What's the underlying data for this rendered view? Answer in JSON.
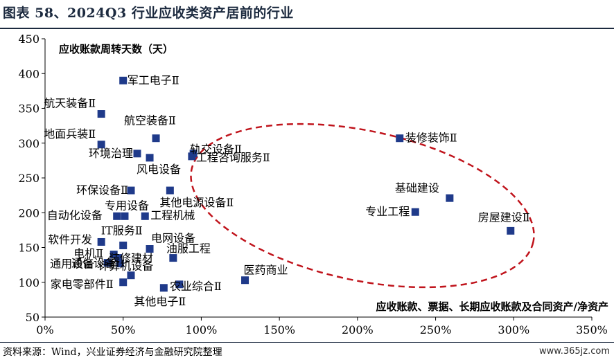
{
  "header": {
    "title": "图表 58、2024Q3 行业应收类资产居前的行业"
  },
  "footer": {
    "source": "资料来源：Wind，兴业证券经济与金融研究院整理",
    "watermark": "www.365jz.com"
  },
  "colors": {
    "marker": "#1f3a8a",
    "ellipse": "#c0141c",
    "axis": "#000000",
    "title": "#1c2a3f"
  },
  "chart_data": {
    "type": "scatter",
    "xlabel": "应收账款、票据、长期应收账款及合同资产/净资产",
    "ylabel": "应收账款周转天数（天）",
    "xlim": [
      0,
      3.5
    ],
    "ylim": [
      50,
      450
    ],
    "x_tick_values": [
      0,
      0.5,
      1.0,
      1.5,
      2.0,
      2.5,
      3.0,
      3.5
    ],
    "x_ticks": [
      "0%",
      "50%",
      "100%",
      "150%",
      "200%",
      "250%",
      "300%",
      "350%"
    ],
    "y_ticks": [
      "50",
      "100",
      "150",
      "200",
      "250",
      "300",
      "350",
      "400",
      "450"
    ],
    "y_tick_values": [
      50,
      100,
      150,
      200,
      250,
      300,
      350,
      400,
      450
    ],
    "highlight": "dashed ellipse around high-value industries",
    "points": [
      {
        "label": "军工电子Ⅱ",
        "x": 0.5,
        "y": 390
      },
      {
        "label": "航天装备Ⅱ",
        "x": 0.36,
        "y": 342
      },
      {
        "label": "航空装备Ⅱ",
        "x": 0.71,
        "y": 307
      },
      {
        "label": "地面兵装Ⅱ",
        "x": 0.36,
        "y": 298
      },
      {
        "label": "轨交设备Ⅱ",
        "x": 0.95,
        "y": 285
      },
      {
        "label": "环境治理",
        "x": 0.59,
        "y": 285
      },
      {
        "label": "工程咨询服务Ⅱ",
        "x": 0.94,
        "y": 281
      },
      {
        "label": "风电设备",
        "x": 0.67,
        "y": 279
      },
      {
        "label": "装修装饰Ⅱ",
        "x": 2.27,
        "y": 307
      },
      {
        "label": "环保设备Ⅱ",
        "x": 0.55,
        "y": 232
      },
      {
        "label": "其他电源设备Ⅱ",
        "x": 0.8,
        "y": 232
      },
      {
        "label": "基础建设",
        "x": 2.59,
        "y": 221
      },
      {
        "label": "专业工程",
        "x": 2.37,
        "y": 201
      },
      {
        "label": "自动化设备",
        "x": 0.46,
        "y": 195
      },
      {
        "label": "专用设备",
        "x": 0.51,
        "y": 195
      },
      {
        "label": "工程机械",
        "x": 0.64,
        "y": 195
      },
      {
        "label": "房屋建设Ⅱ",
        "x": 2.98,
        "y": 174
      },
      {
        "label": "软件开发",
        "x": 0.36,
        "y": 158
      },
      {
        "label": "IT服务Ⅱ",
        "x": 0.5,
        "y": 153
      },
      {
        "label": "电网设备",
        "x": 0.67,
        "y": 148
      },
      {
        "label": "电机Ⅱ",
        "x": 0.44,
        "y": 140
      },
      {
        "label": "装修建材",
        "x": 0.47,
        "y": 135
      },
      {
        "label": "油服工程",
        "x": 0.82,
        "y": 135
      },
      {
        "label": "通用设备",
        "x": 0.4,
        "y": 128
      },
      {
        "label": "计算机设备",
        "x": 0.48,
        "y": 127
      },
      {
        "label": "通信设备",
        "x": 0.55,
        "y": 110
      },
      {
        "label": "医药商业",
        "x": 1.28,
        "y": 103
      },
      {
        "label": "家电零部件Ⅱ",
        "x": 0.5,
        "y": 100
      },
      {
        "label": "农业综合Ⅱ",
        "x": 0.86,
        "y": 97
      },
      {
        "label": "其他电子Ⅱ",
        "x": 0.76,
        "y": 92
      }
    ]
  }
}
